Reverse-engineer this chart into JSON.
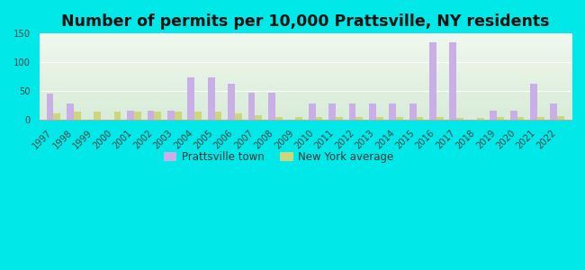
{
  "title": "Number of permits per 10,000 Prattsville, NY residents",
  "years": [
    1997,
    1998,
    1999,
    2000,
    2001,
    2002,
    2003,
    2004,
    2005,
    2006,
    2007,
    2008,
    2009,
    2010,
    2011,
    2012,
    2013,
    2014,
    2015,
    2016,
    2017,
    2018,
    2019,
    2020,
    2021,
    2022
  ],
  "prattsville": [
    45,
    28,
    0,
    0,
    16,
    16,
    16,
    74,
    74,
    62,
    47,
    47,
    0,
    28,
    28,
    28,
    28,
    28,
    28,
    135,
    135,
    0,
    15,
    15,
    62,
    28
  ],
  "ny_average": [
    11,
    13,
    13,
    13,
    13,
    13,
    13,
    13,
    13,
    11,
    7,
    4,
    4,
    4,
    4,
    4,
    4,
    4,
    4,
    4,
    3,
    3,
    4,
    4,
    4,
    6
  ],
  "prattsville_color": "#c9aee8",
  "ny_color": "#cdd67a",
  "background_outer": "#00e8e8",
  "background_inner_top": "#d8ecd8",
  "background_inner_bottom": "#f0f8ee",
  "ylim": [
    0,
    150
  ],
  "yticks": [
    0,
    50,
    100,
    150
  ],
  "bar_width": 0.35,
  "legend_labels": [
    "Prattsville town",
    "New York average"
  ],
  "title_fontsize": 12.5,
  "tick_fontsize": 7.2
}
